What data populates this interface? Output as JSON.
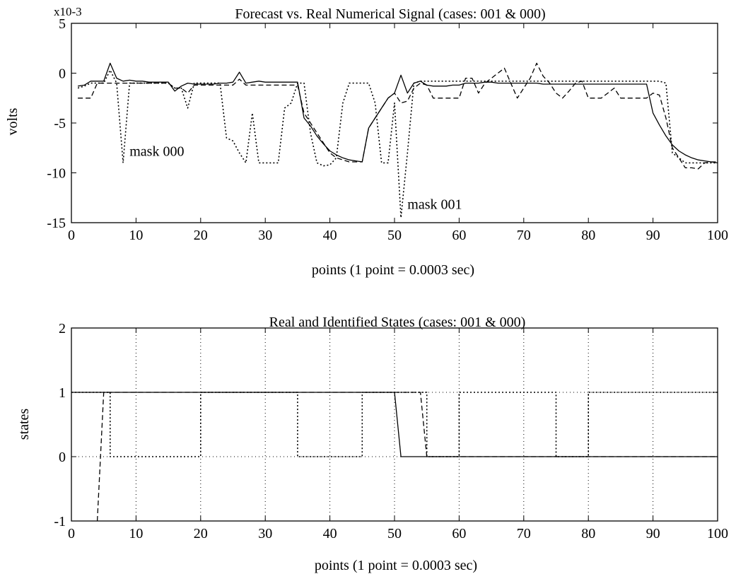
{
  "chart_data": [
    {
      "type": "line",
      "title": "Forecast vs. Real Numerical Signal (cases: 001 & 000)",
      "xlabel": "points   (1 point = 0.0003 sec)",
      "ylabel": "volts",
      "scale_label": "x10-3",
      "xlim": [
        0,
        100
      ],
      "ylim": [
        -15,
        5
      ],
      "xticks": [
        0,
        10,
        20,
        30,
        40,
        50,
        60,
        70,
        80,
        90,
        100
      ],
      "yticks": [
        5,
        0,
        -5,
        -10,
        -15
      ],
      "grid": false,
      "annotations": [
        {
          "text": "mask 000",
          "x": 9,
          "y": -8.3
        },
        {
          "text": "mask 001",
          "x": 52,
          "y": -13.6
        }
      ],
      "series": [
        {
          "style": "solid",
          "x": [
            1,
            2,
            3,
            4,
            5,
            6,
            7,
            8,
            9,
            10,
            11,
            12,
            13,
            14,
            15,
            16,
            17,
            18,
            19,
            20,
            21,
            22,
            23,
            24,
            25,
            26,
            27,
            28,
            29,
            30,
            31,
            32,
            33,
            34,
            35,
            36,
            37,
            38,
            39,
            40,
            41,
            42,
            43,
            44,
            45,
            46,
            47,
            48,
            49,
            50,
            51,
            52,
            53,
            54,
            55,
            56,
            57,
            58,
            59,
            60,
            61,
            62,
            63,
            64,
            65,
            66,
            67,
            68,
            69,
            70,
            71,
            72,
            73,
            74,
            75,
            76,
            77,
            78,
            79,
            80,
            81,
            82,
            83,
            84,
            85,
            86,
            87,
            88,
            89,
            90,
            91,
            92,
            93,
            94,
            95,
            96,
            97,
            98,
            99,
            100
          ],
          "y": [
            -1.3,
            -1.2,
            -0.8,
            -0.8,
            -0.8,
            1.0,
            -0.5,
            -0.8,
            -0.7,
            -0.8,
            -0.8,
            -0.9,
            -0.9,
            -0.9,
            -0.9,
            -1.8,
            -1.3,
            -1.0,
            -1.1,
            -1.1,
            -1.1,
            -1.1,
            -1.0,
            -1.0,
            -0.9,
            0.1,
            -1.0,
            -0.9,
            -0.8,
            -0.9,
            -0.9,
            -0.9,
            -0.9,
            -0.9,
            -0.9,
            -4.5,
            -5.3,
            -6.3,
            -7.1,
            -7.8,
            -8.2,
            -8.5,
            -8.7,
            -8.8,
            -8.9,
            -5.5,
            -4.5,
            -3.5,
            -2.5,
            -2.0,
            -0.2,
            -2.0,
            -1.0,
            -0.8,
            -1.2,
            -1.3,
            -1.3,
            -1.3,
            -1.2,
            -1.2,
            -1.0,
            -1.0,
            -1.0,
            -0.9,
            -0.9,
            -1.0,
            -1.0,
            -1.0,
            -1.0,
            -1.0,
            -1.0,
            -1.0,
            -1.1,
            -1.1,
            -1.1,
            -1.1,
            -1.1,
            -1.1,
            -1.1,
            -1.1,
            -1.1,
            -1.1,
            -1.1,
            -1.1,
            -1.1,
            -1.1,
            -1.1,
            -1.1,
            -1.1,
            -4.0,
            -5.2,
            -6.3,
            -7.2,
            -7.8,
            -8.2,
            -8.5,
            -8.7,
            -8.8,
            -8.9,
            -9.0
          ]
        },
        {
          "style": "dashed",
          "x": [
            1,
            2,
            3,
            4,
            5,
            6,
            7,
            8,
            9,
            10,
            11,
            12,
            13,
            14,
            15,
            16,
            17,
            18,
            19,
            20,
            21,
            22,
            23,
            24,
            25,
            26,
            27,
            28,
            29,
            30,
            31,
            32,
            33,
            34,
            35,
            36,
            37,
            38,
            39,
            40,
            41,
            42,
            43,
            44,
            45,
            46,
            47,
            48,
            49,
            50,
            51,
            52,
            53,
            54,
            55,
            56,
            57,
            58,
            59,
            60,
            61,
            62,
            63,
            64,
            65,
            66,
            67,
            68,
            69,
            70,
            71,
            72,
            73,
            74,
            75,
            76,
            77,
            78,
            79,
            80,
            81,
            82,
            83,
            84,
            85,
            86,
            87,
            88,
            89,
            90,
            91,
            92,
            93,
            94,
            95,
            96,
            97,
            98,
            99,
            100
          ],
          "y": [
            -2.5,
            -2.5,
            -2.5,
            -1.0,
            -1.0,
            -1.0,
            -1.0,
            -1.0,
            -1.0,
            -1.0,
            -1.0,
            -1.0,
            -1.0,
            -1.0,
            -1.0,
            -1.5,
            -1.5,
            -2.0,
            -1.2,
            -1.2,
            -1.2,
            -1.2,
            -1.2,
            -1.2,
            -1.2,
            -0.6,
            -1.2,
            -1.2,
            -1.2,
            -1.2,
            -1.2,
            -1.2,
            -1.2,
            -1.2,
            -1.2,
            -4.0,
            -5.0,
            -6.0,
            -7.0,
            -8.0,
            -8.5,
            -8.7,
            -8.9,
            -8.9,
            -8.9,
            -5.5,
            -4.5,
            -3.5,
            -2.5,
            -2.0,
            -3.0,
            -2.8,
            -1.5,
            -1.0,
            -1.2,
            -2.5,
            -2.5,
            -2.5,
            -2.5,
            -2.5,
            -0.5,
            -0.5,
            -2.0,
            -1.0,
            -0.5,
            0.0,
            0.5,
            -1.0,
            -2.5,
            -1.5,
            -0.5,
            1.0,
            -0.3,
            -1.0,
            -2.0,
            -2.5,
            -1.8,
            -1.0,
            -0.8,
            -2.5,
            -2.5,
            -2.5,
            -2.0,
            -1.5,
            -2.5,
            -2.5,
            -2.5,
            -2.5,
            -2.5,
            -2.0,
            -2.2,
            -4.5,
            -7.5,
            -8.5,
            -9.5,
            -9.5,
            -9.6,
            -9.0,
            -8.9,
            -8.9
          ]
        },
        {
          "style": "dotted",
          "x": [
            1,
            2,
            3,
            4,
            5,
            6,
            7,
            8,
            9,
            10,
            11,
            12,
            13,
            14,
            15,
            16,
            17,
            18,
            19,
            20,
            21,
            22,
            23,
            24,
            25,
            26,
            27,
            28,
            29,
            30,
            31,
            32,
            33,
            34,
            35,
            36,
            37,
            38,
            39,
            40,
            41,
            42,
            43,
            44,
            45,
            46,
            47,
            48,
            49,
            50,
            51,
            52,
            53,
            54,
            55,
            56,
            57,
            58,
            59,
            60,
            61,
            62,
            63,
            64,
            65,
            66,
            67,
            68,
            69,
            70,
            71,
            72,
            73,
            74,
            75,
            76,
            77,
            78,
            79,
            80,
            81,
            82,
            83,
            84,
            85,
            86,
            87,
            88,
            89,
            90,
            91,
            92,
            93,
            94,
            95,
            96,
            97,
            98,
            99,
            100
          ],
          "y": [
            -1.5,
            -1.3,
            -1.0,
            -1.0,
            -1.0,
            0.3,
            -1.0,
            -9.0,
            -1.0,
            -1.0,
            -1.0,
            -1.0,
            -1.0,
            -1.0,
            -1.0,
            -1.5,
            -1.5,
            -3.5,
            -1.0,
            -1.0,
            -1.0,
            -1.0,
            -1.0,
            -6.5,
            -6.8,
            -8.0,
            -9.0,
            -4.0,
            -9.0,
            -9.0,
            -9.0,
            -9.0,
            -3.5,
            -3.0,
            -1.0,
            -1.0,
            -6.0,
            -9.0,
            -9.3,
            -9.2,
            -8.5,
            -3.0,
            -1.0,
            -1.0,
            -1.0,
            -1.0,
            -3.0,
            -9.0,
            -9.0,
            -3.0,
            -14.5,
            -8.0,
            -1.0,
            -0.8,
            -0.8,
            -0.8,
            -0.8,
            -0.8,
            -0.8,
            -0.8,
            -0.8,
            -0.8,
            -0.8,
            -0.8,
            -0.8,
            -0.8,
            -0.8,
            -0.8,
            -0.8,
            -0.8,
            -0.8,
            -0.8,
            -0.8,
            -0.8,
            -0.8,
            -0.8,
            -0.8,
            -0.8,
            -0.8,
            -0.8,
            -0.8,
            -0.8,
            -0.8,
            -0.8,
            -0.8,
            -0.8,
            -0.8,
            -0.8,
            -0.8,
            -0.8,
            -0.8,
            -1.0,
            -8.0,
            -8.5,
            -9.0,
            -9.0,
            -9.0,
            -9.0,
            -9.0,
            -9.0
          ]
        }
      ]
    },
    {
      "type": "line",
      "title": "Real and Identified States  (cases: 001 & 000)",
      "xlabel": "points   (1 point = 0.0003 sec)",
      "ylabel": "states",
      "xlim": [
        0,
        100
      ],
      "ylim": [
        -1,
        2
      ],
      "xticks": [
        0,
        10,
        20,
        30,
        40,
        50,
        60,
        70,
        80,
        90,
        100
      ],
      "yticks": [
        2,
        1,
        0,
        -1
      ],
      "grid": true,
      "series": [
        {
          "style": "solid",
          "x": [
            0,
            50,
            51,
            100
          ],
          "y": [
            1,
            1,
            0,
            0
          ]
        },
        {
          "style": "dashed",
          "x": [
            4,
            5,
            50,
            54,
            55,
            100
          ],
          "y": [
            -1,
            1,
            1,
            1,
            0,
            0
          ]
        },
        {
          "style": "dotted",
          "x": [
            0,
            6,
            6,
            20,
            20,
            35,
            35,
            45,
            45,
            55,
            55,
            60,
            60,
            75,
            75,
            80,
            80,
            100
          ],
          "y": [
            1,
            1,
            0,
            0,
            1,
            1,
            0,
            0,
            1,
            1,
            0,
            0,
            1,
            1,
            0,
            0,
            1,
            1
          ]
        }
      ]
    }
  ]
}
